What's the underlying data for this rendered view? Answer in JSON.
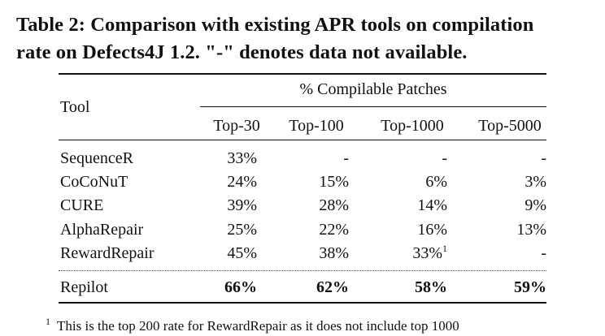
{
  "caption": {
    "line1": "Table 2: Comparison with existing APR tools on compilation",
    "line2": "rate on Defects4J 1.2. \"-\" denotes data not available."
  },
  "table": {
    "tool_header": "Tool",
    "group_header": "% Compilable Patches",
    "columns": [
      "Top-30",
      "Top-100",
      "Top-1000",
      "Top-5000"
    ],
    "rows": [
      {
        "tool": "SequenceR",
        "values": [
          "33%",
          "-",
          "-",
          "-"
        ]
      },
      {
        "tool": "CoCoNuT",
        "values": [
          "24%",
          "15%",
          "6%",
          "3%"
        ]
      },
      {
        "tool": "CURE",
        "values": [
          "39%",
          "28%",
          "14%",
          "9%"
        ]
      },
      {
        "tool": "AlphaRepair",
        "values": [
          "25%",
          "22%",
          "16%",
          "13%"
        ]
      },
      {
        "tool": "RewardRepair",
        "values": [
          "45%",
          "38%",
          "33%",
          "-"
        ],
        "footnote_marks": [
          "",
          "",
          "1",
          ""
        ]
      }
    ],
    "highlight_row": {
      "tool": "Repilot",
      "values": [
        "66%",
        "62%",
        "58%",
        "59%"
      ]
    }
  },
  "footnote": {
    "mark": "1",
    "text": "This is the top 200 rate for RewardRepair as it does not include top 1000"
  }
}
